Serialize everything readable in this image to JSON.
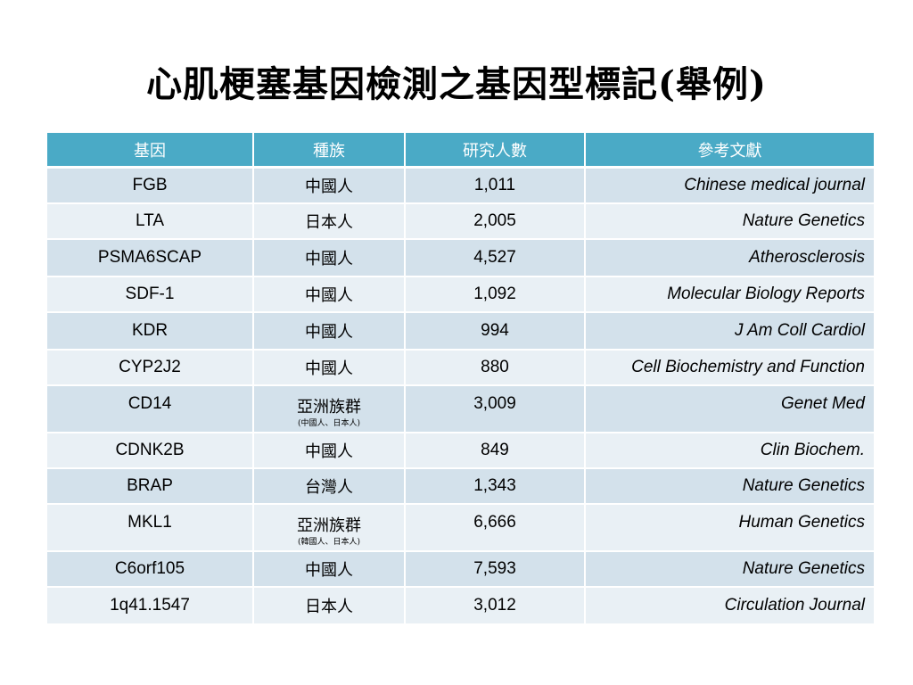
{
  "slide": {
    "title": "心肌梗塞基因檢測之基因型標記(舉例)"
  },
  "table": {
    "headers": [
      "基因",
      "種族",
      "研究人數",
      "參考文獻"
    ],
    "rows": [
      {
        "gene": "FGB",
        "ethnicity": "中國人",
        "sub": "",
        "count": "1,011",
        "reference": "Chinese medical journal"
      },
      {
        "gene": "LTA",
        "ethnicity": "日本人",
        "sub": "",
        "count": "2,005",
        "reference": "Nature Genetics"
      },
      {
        "gene": "PSMA6SCAP",
        "ethnicity": "中國人",
        "sub": "",
        "count": "4,527",
        "reference": "Atherosclerosis"
      },
      {
        "gene": "SDF-1",
        "ethnicity": "中國人",
        "sub": "",
        "count": "1,092",
        "reference": "Molecular Biology Reports"
      },
      {
        "gene": "KDR",
        "ethnicity": "中國人",
        "sub": "",
        "count": "994",
        "reference": "J Am Coll Cardiol"
      },
      {
        "gene": "CYP2J2",
        "ethnicity": "中國人",
        "sub": "",
        "count": "880",
        "reference": "Cell Biochemistry and Function"
      },
      {
        "gene": "CD14",
        "ethnicity": "亞洲族群",
        "sub": "(中國人、日本人)",
        "count": "3,009",
        "reference": "Genet Med"
      },
      {
        "gene": "CDNK2B",
        "ethnicity": "中國人",
        "sub": "",
        "count": "849",
        "reference": "Clin Biochem."
      },
      {
        "gene": "BRAP",
        "ethnicity": "台灣人",
        "sub": "",
        "count": "1,343",
        "reference": "Nature Genetics"
      },
      {
        "gene": "MKL1",
        "ethnicity": "亞洲族群",
        "sub": "(韓國人、日本人)",
        "count": "6,666",
        "reference": "Human Genetics"
      },
      {
        "gene": "C6orf105",
        "ethnicity": "中國人",
        "sub": "",
        "count": "7,593",
        "reference": "Nature Genetics"
      },
      {
        "gene": "1q41.1547",
        "ethnicity": "日本人",
        "sub": "",
        "count": "3,012",
        "reference": "Circulation Journal"
      }
    ]
  }
}
